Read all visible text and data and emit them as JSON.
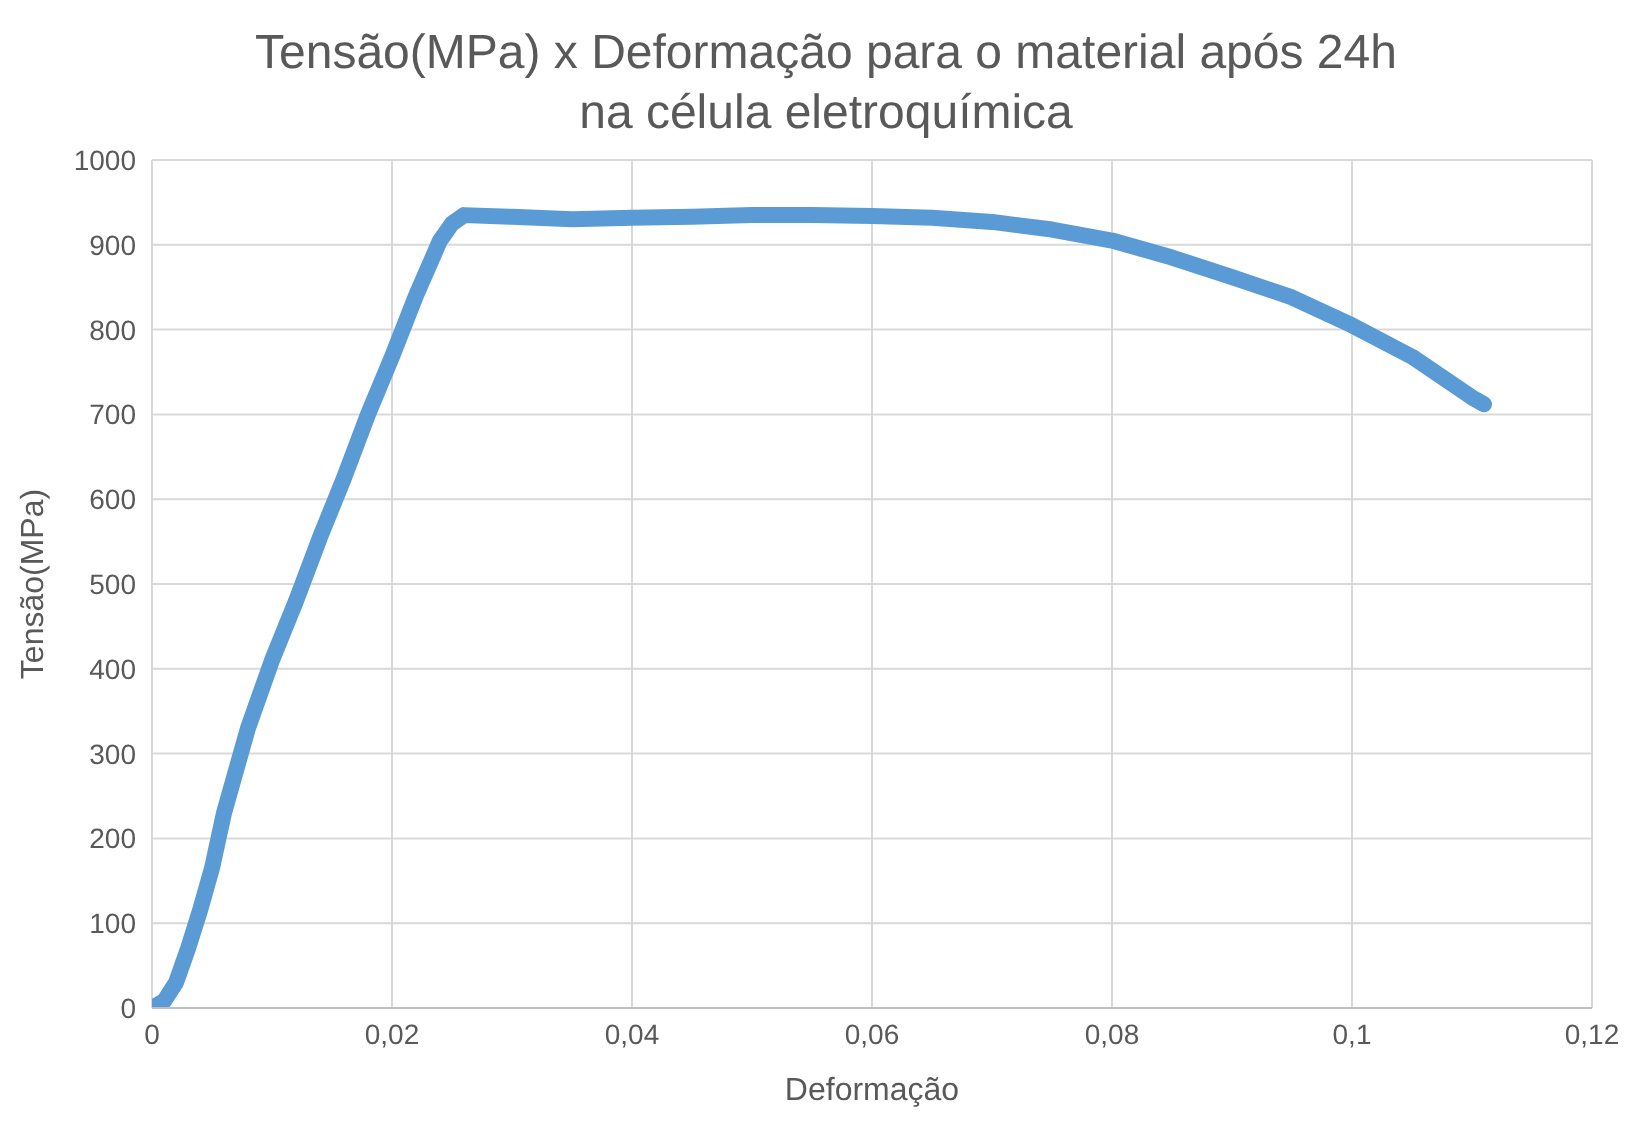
{
  "chart_data": {
    "type": "line",
    "title": "Tensão(MPa) x Deformação para o material após 24h na célula eletroquímica",
    "xlabel": "Deformação",
    "ylabel": "Tensão(MPa)",
    "x": [
      0,
      0.001,
      0.002,
      0.003,
      0.004,
      0.005,
      0.006,
      0.008,
      0.01,
      0.012,
      0.014,
      0.016,
      0.018,
      0.02,
      0.022,
      0.024,
      0.025,
      0.026,
      0.03,
      0.035,
      0.04,
      0.045,
      0.05,
      0.055,
      0.06,
      0.065,
      0.07,
      0.075,
      0.08,
      0.085,
      0.09,
      0.095,
      0.1,
      0.105,
      0.11,
      0.111
    ],
    "series": [
      {
        "color": "#5b9bd5",
        "values": [
          0,
          8,
          30,
          70,
          115,
          165,
          230,
          330,
          410,
          480,
          555,
          625,
          700,
          768,
          840,
          905,
          925,
          935,
          933,
          930,
          932,
          933,
          935,
          935,
          934,
          932,
          927,
          918,
          905,
          885,
          862,
          838,
          805,
          768,
          720,
          712
        ]
      }
    ],
    "xlim": [
      0,
      0.12
    ],
    "xticks": [
      0,
      {
        "value": 0.02,
        "label": "0,02"
      },
      {
        "value": 0.04,
        "label": "0,04"
      },
      {
        "value": 0.06,
        "label": "0,06"
      },
      {
        "value": 0.08,
        "label": "0,08"
      },
      {
        "value": 0.1,
        "label": "0,1"
      },
      {
        "value": 0.12,
        "label": "0,12"
      }
    ],
    "ylim": [
      0,
      1000
    ],
    "yticks": [
      0,
      100,
      200,
      300,
      400,
      500,
      600,
      700,
      800,
      900,
      1000
    ],
    "grid": true,
    "marker": "none",
    "line_style": "solid"
  }
}
